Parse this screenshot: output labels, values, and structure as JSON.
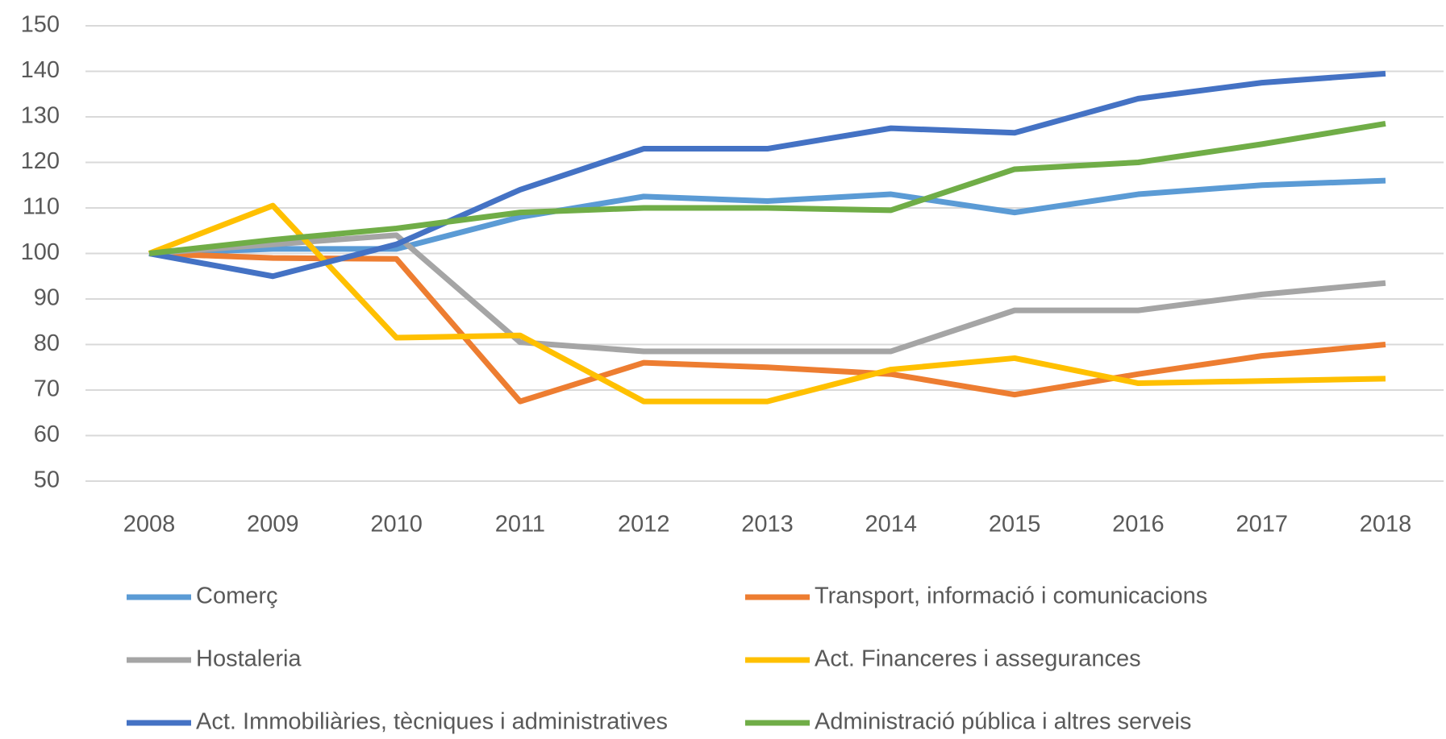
{
  "chart_data": {
    "type": "line",
    "categories": [
      "2008",
      "2009",
      "2010",
      "2011",
      "2012",
      "2013",
      "2014",
      "2015",
      "2016",
      "2017",
      "2018"
    ],
    "series": [
      {
        "name": "Comerç",
        "color": "#5B9BD5",
        "values": [
          100,
          101,
          101,
          108,
          112.5,
          111.5,
          113,
          109,
          113,
          115,
          116
        ]
      },
      {
        "name": "Transport, informació i comunicacions",
        "color": "#ED7D31",
        "values": [
          100,
          99,
          98.8,
          67.5,
          76,
          75,
          73.5,
          69,
          73.5,
          77.5,
          80
        ]
      },
      {
        "name": "Hostaleria",
        "color": "#A5A5A5",
        "values": [
          100,
          102,
          104,
          80.5,
          78.5,
          78.5,
          78.5,
          87.5,
          87.5,
          91,
          93.5
        ]
      },
      {
        "name": "Act. Financeres i assegurances",
        "color": "#FFC000",
        "values": [
          100,
          110.5,
          81.5,
          82,
          67.5,
          67.5,
          74.5,
          77,
          71.5,
          72,
          72.5
        ]
      },
      {
        "name": "Act. Immobiliàries, tècniques i administratives",
        "color": "#4472C4",
        "values": [
          100,
          95,
          102,
          114,
          123,
          123,
          127.5,
          126.5,
          134,
          137.5,
          139.5
        ]
      },
      {
        "name": "Administració pública i altres serveis",
        "color": "#70AD47",
        "values": [
          100,
          103,
          105.5,
          109,
          110,
          110,
          109.5,
          118.5,
          120,
          124,
          128.5
        ]
      }
    ],
    "ylim": [
      50,
      150
    ],
    "yticks": [
      50,
      60,
      70,
      80,
      90,
      100,
      110,
      120,
      130,
      140,
      150
    ],
    "grid": true
  }
}
